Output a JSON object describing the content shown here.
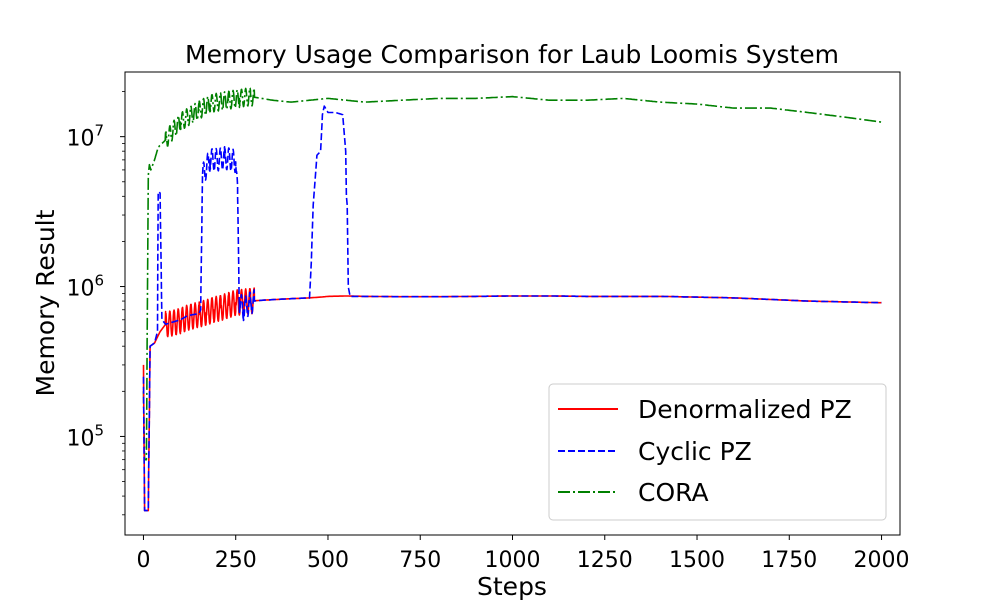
{
  "chart_data": {
    "type": "line",
    "title": "Memory Usage Comparison for Laub Loomis System",
    "xlabel": "Steps",
    "ylabel": "Memory Result",
    "xlim": [
      -50,
      2050
    ],
    "ylim": [
      22000,
      27000000
    ],
    "yscale": "log",
    "xticks": [
      0,
      250,
      500,
      750,
      1000,
      1250,
      1500,
      1750,
      2000
    ],
    "xtick_labels": [
      "0",
      "250",
      "500",
      "750",
      "1000",
      "1250",
      "1500",
      "1750",
      "2000"
    ],
    "yticks": [
      100000,
      1000000,
      10000000
    ],
    "ytick_labels": [
      {
        "base": "10",
        "exp": "5"
      },
      {
        "base": "10",
        "exp": "6"
      },
      {
        "base": "10",
        "exp": "7"
      }
    ],
    "legend_position": "lower-right",
    "grid": false,
    "series": [
      {
        "name": "Denormalized PZ",
        "color": "#ff0000",
        "dash": "solid",
        "x": [
          0,
          3,
          8,
          13,
          18,
          30,
          45,
          60,
          80,
          100,
          120,
          150,
          170,
          190,
          210,
          230,
          250,
          270,
          290,
          320,
          360,
          400,
          450,
          480,
          500,
          550,
          600,
          700,
          800,
          900,
          1000,
          1100,
          1200,
          1300,
          1400,
          1500,
          1600,
          1700,
          1800,
          1900,
          2000
        ],
        "y": [
          300000,
          32000,
          32000,
          32000,
          400000,
          420000,
          500000,
          560000,
          570000,
          590000,
          620000,
          650000,
          670000,
          700000,
          720000,
          750000,
          780000,
          790000,
          800000,
          810000,
          820000,
          830000,
          840000,
          850000,
          860000,
          865000,
          860000,
          855000,
          855000,
          860000,
          865000,
          865000,
          860000,
          860000,
          860000,
          850000,
          840000,
          820000,
          800000,
          790000,
          780000
        ],
        "oscillation": {
          "x_start": 60,
          "x_end": 300,
          "amp": 0.17
        }
      },
      {
        "name": "Cyclic PZ",
        "color": "#0000ff",
        "dash": "dashed",
        "x": [
          0,
          3,
          8,
          13,
          18,
          30,
          38,
          40,
          42,
          45,
          50,
          60,
          80,
          100,
          120,
          150,
          155,
          160,
          180,
          200,
          220,
          240,
          250,
          255,
          260,
          270,
          290,
          300,
          320,
          360,
          400,
          450,
          455,
          460,
          470,
          480,
          485,
          490,
          500,
          520,
          540,
          548,
          550,
          552,
          555,
          560,
          600,
          700,
          800,
          900,
          1000,
          1100,
          1200,
          1300,
          1400,
          1500,
          1600,
          1700,
          1800,
          1900,
          2000
        ],
        "y": [
          250000,
          32000,
          32000,
          32000,
          400000,
          420000,
          500000,
          4200000,
          4300000,
          4200000,
          600000,
          560000,
          580000,
          600000,
          640000,
          660000,
          700000,
          5500000,
          7000000,
          7000000,
          7200000,
          7000000,
          6800000,
          4000000,
          800000,
          700000,
          780000,
          800000,
          810000,
          820000,
          830000,
          840000,
          1500000,
          3500000,
          7500000,
          8000000,
          14000000,
          16000000,
          14500000,
          14500000,
          14000000,
          8000000,
          4000000,
          3500000,
          1000000,
          860000,
          860000,
          855000,
          855000,
          860000,
          865000,
          865000,
          860000,
          860000,
          860000,
          850000,
          840000,
          820000,
          800000,
          790000,
          780000
        ],
        "oscillation": {
          "x_start": 160,
          "x_end": 300,
          "amp": 0.15
        }
      },
      {
        "name": "CORA",
        "color": "#008000",
        "dash": "dashdot",
        "x": [
          0,
          3,
          8,
          13,
          16,
          20,
          30,
          40,
          50,
          60,
          80,
          100,
          120,
          150,
          180,
          200,
          230,
          260,
          290,
          320,
          350,
          400,
          450,
          500,
          550,
          600,
          700,
          800,
          900,
          1000,
          1100,
          1200,
          1300,
          1400,
          1500,
          1600,
          1700,
          1800,
          1900,
          2000
        ],
        "y": [
          200000,
          70000,
          70000,
          5500000,
          6500000,
          6000000,
          7000000,
          8500000,
          9000000,
          9500000,
          11000000,
          12500000,
          13500000,
          15000000,
          16500000,
          17000000,
          17500000,
          18000000,
          18500000,
          18000000,
          17500000,
          17000000,
          17500000,
          18000000,
          17500000,
          17000000,
          17500000,
          18000000,
          18000000,
          18500000,
          17500000,
          17500000,
          18000000,
          17000000,
          16500000,
          15500000,
          15500000,
          14500000,
          13500000,
          12500000
        ],
        "oscillation": {
          "x_start": 60,
          "x_end": 300,
          "amp": 0.12
        }
      }
    ]
  }
}
